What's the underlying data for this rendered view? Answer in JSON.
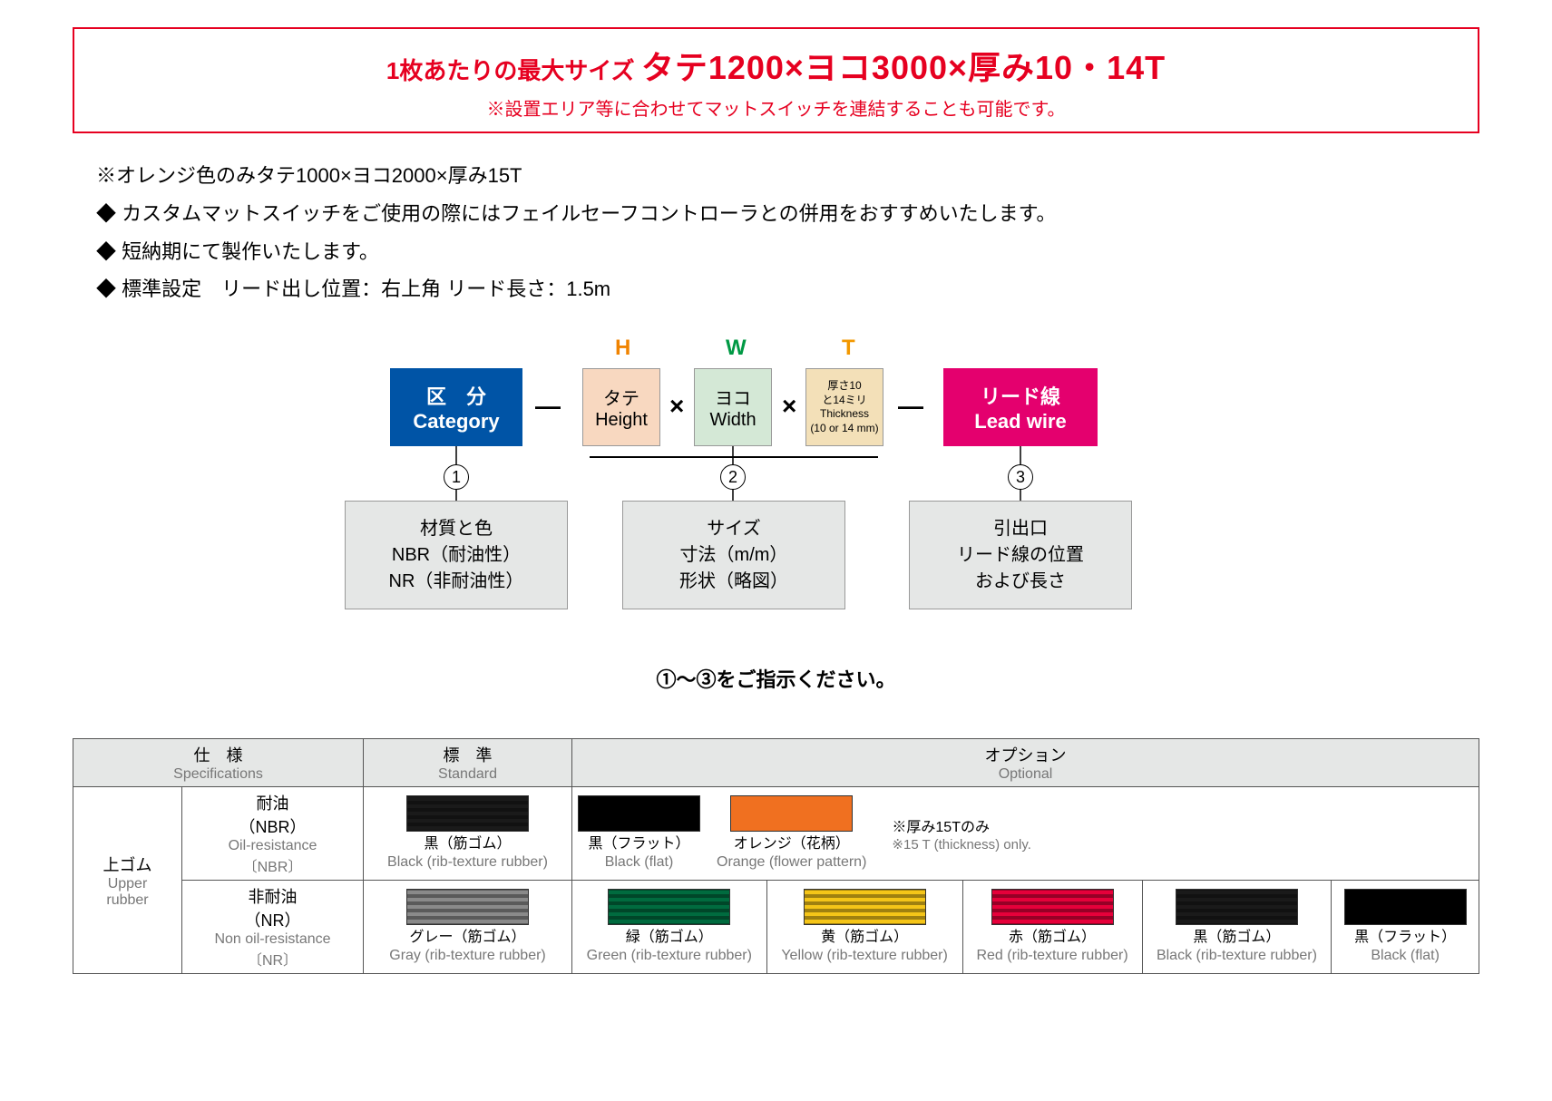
{
  "banner": {
    "prefix": "1枚あたりの最大サイズ",
    "main": "タテ1200×ヨコ3000×厚み10・14T",
    "sub": "※設置エリア等に合わせてマットスイッチを連結することも可能です。"
  },
  "notes": {
    "l1": "※オレンジ色のみタテ1000×ヨコ2000×厚み15T",
    "l2": "◆ カスタムマットスイッチをご使用の際にはフェイルセーフコントローラとの併用をおすすめいたします。",
    "l3": "◆ 短納期にて製作いたします。",
    "l4": "◆ 標準設定　リード出し位置：右上角 リード長さ：1.5m"
  },
  "diagram": {
    "labels": {
      "H": "H",
      "W": "W",
      "T": "T"
    },
    "label_colors": {
      "H": "#f08300",
      "W": "#009944",
      "T": "#f39800"
    },
    "connector": "—",
    "times": "×",
    "category": {
      "jp": "区　分",
      "en": "Category",
      "bg": "#0054a6"
    },
    "height": {
      "jp": "タテ",
      "en": "Height",
      "bg": "#f8d8c0"
    },
    "width": {
      "jp": "ヨコ",
      "en": "Width",
      "bg": "#d4e8d6"
    },
    "thickness": {
      "l1": "厚さ10",
      "l2": "と14ミリ",
      "l3": "Thickness",
      "l4": "(10 or 14 mm)",
      "bg": "#f3e0b8"
    },
    "lead": {
      "jp": "リード線",
      "en": "Lead wire",
      "bg": "#e4006e"
    },
    "nums": {
      "n1": "1",
      "n2": "2",
      "n3": "3"
    },
    "box1": {
      "l1": "材質と色",
      "l2": "NBR（耐油性）",
      "l3": "NR（非耐油性）"
    },
    "box2": {
      "l1": "サイズ",
      "l2": "寸法（m/m）",
      "l3": "形状（略図）"
    },
    "box3": {
      "l1": "引出口",
      "l2": "リード線の位置",
      "l3": "および長さ"
    },
    "footer": "①〜③をご指示ください。"
  },
  "table": {
    "h_spec_jp": "仕　様",
    "h_spec_en": "Specifications",
    "h_std_jp": "標　準",
    "h_std_en": "Standard",
    "h_opt_jp": "オプション",
    "h_opt_en": "Optional",
    "upper_jp": "上ゴム",
    "upper_en1": "Upper",
    "upper_en2": "rubber",
    "nbr_jp": "耐油",
    "nbr_p": "（NBR）",
    "nbr_en1": "Oil-resistance",
    "nbr_en2": "〔NBR〕",
    "nr_jp": "非耐油",
    "nr_p": "（NR）",
    "nr_en1": "Non oil-resistance",
    "nr_en2": "〔NR〕",
    "thick_note_jp": "※厚み15Tのみ",
    "thick_note_en": "※15 T (thickness) only.",
    "swatches": {
      "black_rib": {
        "jp": "黒（筋ゴム）",
        "en": "Black (rib-texture rubber)",
        "color": "#1a1a1a",
        "rib": true
      },
      "black_flat": {
        "jp": "黒（フラット）",
        "en": "Black (flat)",
        "color": "#000000",
        "rib": false
      },
      "orange": {
        "jp": "オレンジ（花柄）",
        "en": "Orange (flower pattern)",
        "color": "#f07020",
        "rib": false
      },
      "gray_rib": {
        "jp": "グレー（筋ゴム）",
        "en": "Gray (rib-texture rubber)",
        "color": "#8a8a8a",
        "rib": true
      },
      "green_rib": {
        "jp": "緑（筋ゴム）",
        "en": "Green (rib-texture rubber)",
        "color": "#006b3f",
        "rib": true
      },
      "yellow_rib": {
        "jp": "黄（筋ゴム）",
        "en": "Yellow (rib-texture rubber)",
        "color": "#f5c518",
        "rib": true
      },
      "red_rib": {
        "jp": "赤（筋ゴム）",
        "en": "Red (rib-texture rubber)",
        "color": "#e6003a",
        "rib": true
      },
      "black_rib2": {
        "jp": "黒（筋ゴム）",
        "en": "Black (rib-texture rubber)",
        "color": "#1a1a1a",
        "rib": true
      },
      "black_flat2": {
        "jp": "黒（フラット）",
        "en": "Black (flat)",
        "color": "#000000",
        "rib": false
      }
    }
  }
}
